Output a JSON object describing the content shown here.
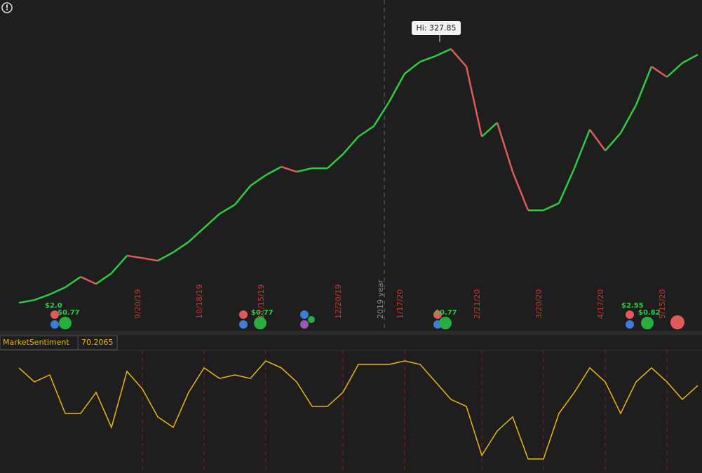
{
  "chart_data": [
    {
      "type": "line",
      "categories": [
        null,
        null,
        null,
        null,
        null,
        null,
        null,
        null,
        "9/20/19",
        null,
        null,
        null,
        "10/18/19",
        null,
        null,
        null,
        "11/15/19",
        null,
        null,
        null,
        null,
        "12/20/19",
        null,
        null,
        null,
        "1/17/20",
        null,
        null,
        null,
        null,
        "2/21/20",
        null,
        null,
        null,
        "3/20/20",
        null,
        null,
        null,
        "4/17/20",
        null,
        null,
        null,
        "5/15/20",
        null,
        null
      ],
      "values": [
        203.9,
        205.2,
        207.9,
        211.3,
        216.3,
        212.9,
        218.0,
        226.4,
        225.3,
        224.0,
        228.0,
        233.0,
        239.7,
        246.4,
        250.8,
        259.8,
        264.9,
        268.9,
        266.5,
        268.2,
        268.2,
        274.9,
        283.3,
        288.3,
        300.0,
        313.4,
        319.1,
        321.8,
        325.2,
        316.8,
        283.3,
        290.0,
        266.5,
        248.1,
        248.1,
        251.5,
        268.2,
        286.7,
        276.6,
        285.0,
        298.4,
        316.8,
        311.8,
        318.5,
        322.5
      ],
      "up_color": "#2ecc40",
      "down_color": "#e05a5a",
      "ylim": [
        191.2,
        348.6
      ],
      "high": {
        "value": 327.85,
        "label": "Hi: 327.85"
      },
      "annotation": "2019 year",
      "events": [
        "$2.0",
        "$0.77",
        "$0.77",
        "$0.77",
        "$2.55",
        "$0.82"
      ]
    },
    {
      "type": "line",
      "title": "MarketSentiment",
      "values": [
        85.2,
        73.3,
        79.2,
        46.5,
        46.5,
        64.4,
        34.7,
        82.2,
        67.3,
        43.6,
        34.7,
        64.4,
        85.2,
        76.2,
        79.2,
        76.2,
        91.1,
        85.2,
        73.3,
        52.5,
        52.5,
        64.4,
        88.1,
        88.1,
        88.1,
        91.1,
        88.1,
        73.3,
        58.4,
        52.5,
        10.9,
        31.7,
        43.6,
        7.9,
        7.9,
        46.5,
        64.4,
        85.2,
        73.3,
        46.5,
        73.3,
        85.2,
        73.3,
        58.4,
        70.2065
      ],
      "color": "#e8b80c",
      "ylim": [
        -4,
        100
      ]
    }
  ]
}
